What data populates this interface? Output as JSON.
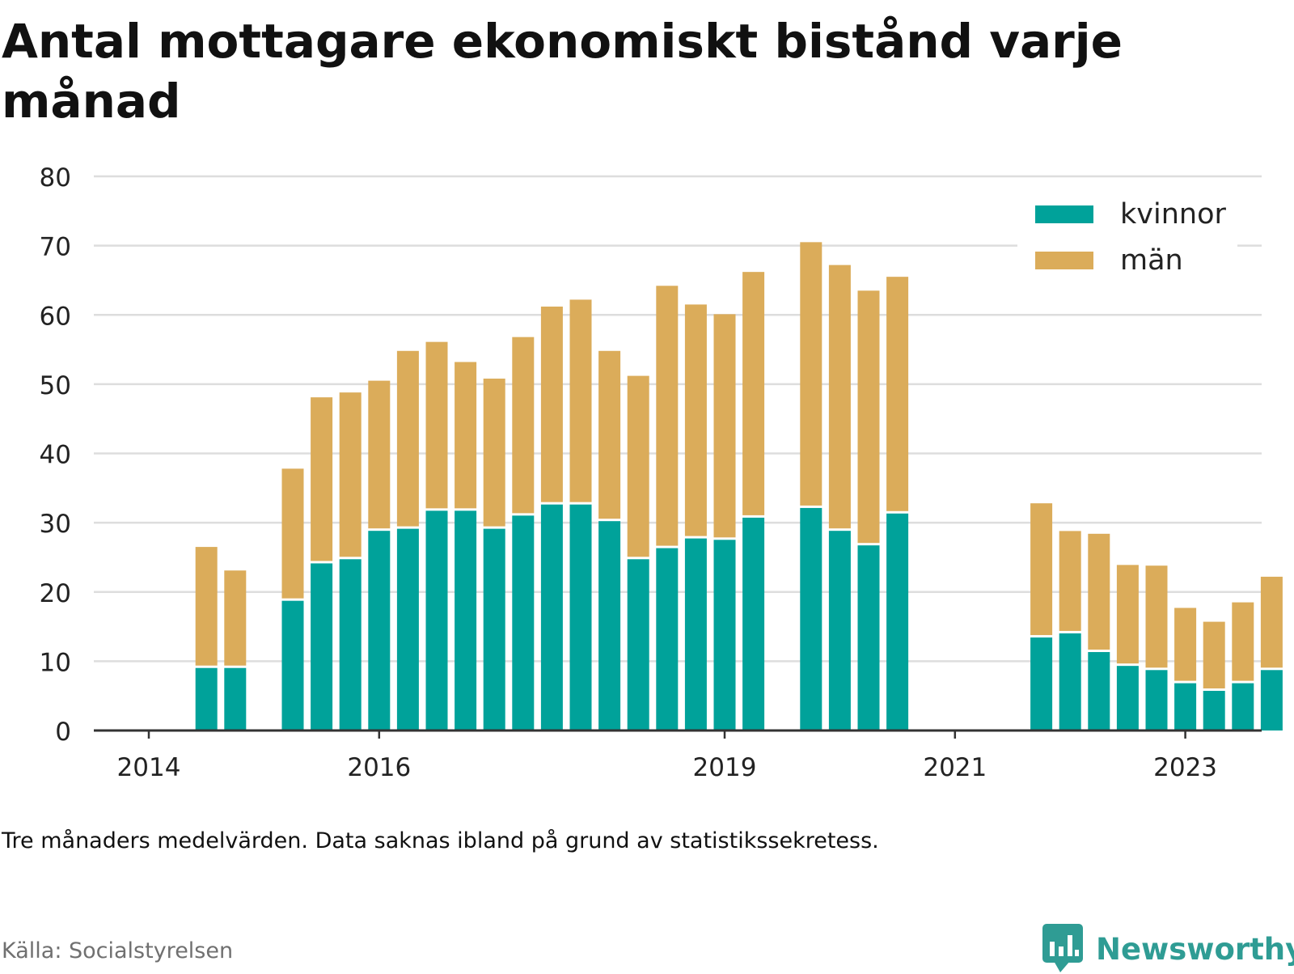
{
  "title": "Antal mottagare ekonomiskt bistånd varje månad",
  "note": "Tre månaders medelvärden. Data saknas ibland på grund av statistikssekretess.",
  "source": "Källa: Socialstyrelsen",
  "brand": "Newsworthy",
  "colors": {
    "kvinnor": "#00a29a",
    "man": "#dbac5a",
    "grid": "#dddddd",
    "axis": "#333333",
    "brand": "#2f9c94"
  },
  "chart_data": {
    "type": "bar",
    "stacked": true,
    "ylim": [
      0,
      80
    ],
    "yticks": [
      0,
      10,
      20,
      30,
      40,
      50,
      60,
      70,
      80
    ],
    "xtick_labels": [
      "2014",
      "2016",
      "2019",
      "2021",
      "2023"
    ],
    "xtick_slots": [
      0,
      8,
      20,
      28,
      36
    ],
    "legend_position": "top-right",
    "grid": true,
    "slots": 41,
    "categories": [
      2,
      3,
      5,
      6,
      7,
      8,
      9,
      10,
      11,
      12,
      13,
      14,
      15,
      16,
      17,
      18,
      19,
      20,
      21,
      23,
      24,
      25,
      26,
      31,
      32,
      33,
      34,
      35,
      36,
      37,
      38,
      39
    ],
    "series": [
      {
        "name": "kvinnor",
        "values": [
          9.2,
          9.2,
          18.9,
          24.3,
          24.9,
          29.0,
          29.3,
          31.9,
          31.9,
          29.3,
          31.2,
          32.8,
          32.8,
          30.4,
          24.9,
          26.5,
          27.9,
          27.7,
          30.9,
          32.3,
          29.0,
          26.9,
          31.5,
          13.6,
          14.2,
          11.5,
          9.5,
          8.9,
          7.0,
          5.9,
          7.0,
          8.9
        ]
      },
      {
        "name": "män",
        "values": [
          17.3,
          13.9,
          18.9,
          23.8,
          23.9,
          21.5,
          25.5,
          24.2,
          21.3,
          21.5,
          25.6,
          28.4,
          29.4,
          24.4,
          26.3,
          37.7,
          33.6,
          32.4,
          35.3,
          38.2,
          38.2,
          36.6,
          34.0,
          19.2,
          14.6,
          16.9,
          14.4,
          14.9,
          10.7,
          9.8,
          11.5,
          13.3
        ]
      }
    ]
  }
}
